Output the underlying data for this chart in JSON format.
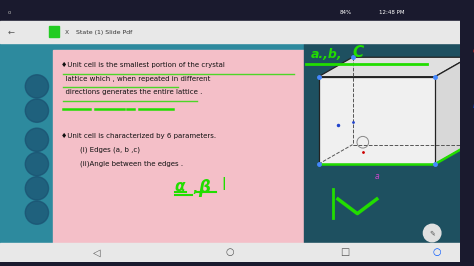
{
  "bg_outer": "#1a1a2e",
  "bg_teal": "#2a8a9a",
  "bg_pink": "#f4c0ce",
  "status_bar_bg": "#1a1a2e",
  "tab_bar_bg": "#f0f0f0",
  "nav_bar_bg": "#f0f0f0",
  "green": "#22dd00",
  "black": "#111111",
  "white": "#ffffff",
  "bullet1_l1": "♦Unit cell is the smallest portion of the crystal",
  "bullet1_l2": "  lattice which , when repeated in different",
  "bullet1_l3": "  directions generates the entire lattice .",
  "bullet2_l1": "♦Unit cell is characterized by 6 parameters.",
  "bullet2_l2": "    (i) Edges (a, b ,c)",
  "bullet2_l3": "    (ii)Angle between the edges .",
  "status_time": "12:48 PM",
  "status_battery": "84%",
  "tab_title": "State (1) Slide Pdf"
}
